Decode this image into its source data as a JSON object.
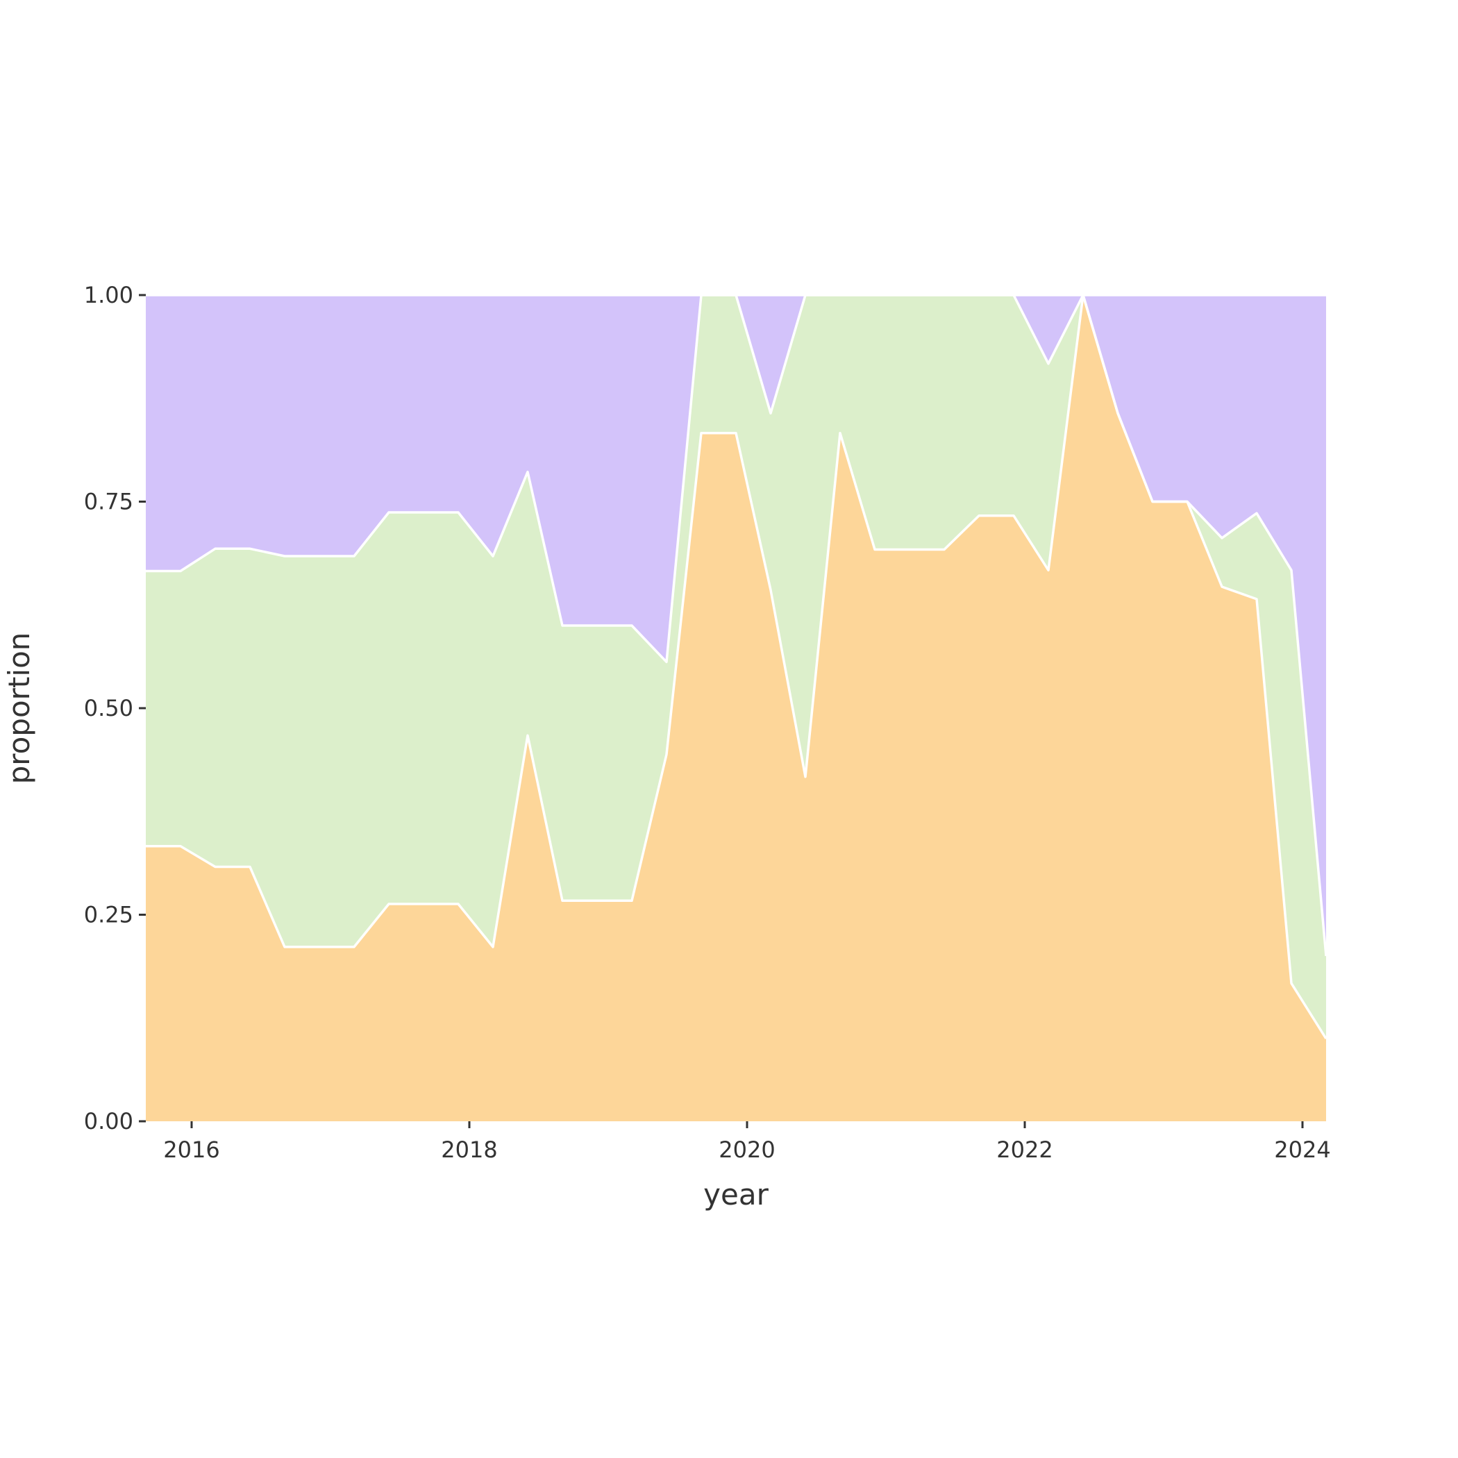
{
  "chart_data": {
    "type": "area",
    "stacked": true,
    "normalized": true,
    "title": "",
    "xlabel": "year",
    "ylabel": "proportion",
    "xlim": [
      2015.67,
      2024.17
    ],
    "ylim": [
      0,
      1
    ],
    "x_ticks": [
      "2016",
      "2018",
      "2020",
      "2022",
      "2024"
    ],
    "y_ticks": [
      "0.00",
      "0.25",
      "0.50",
      "0.75",
      "1.00"
    ],
    "grid": false,
    "legend": "none",
    "x": [
      2015.67,
      2015.92,
      2016.17,
      2016.42,
      2016.67,
      2016.92,
      2017.17,
      2017.42,
      2017.67,
      2017.92,
      2018.17,
      2018.42,
      2018.67,
      2018.92,
      2019.17,
      2019.42,
      2019.67,
      2019.92,
      2020.17,
      2020.42,
      2020.67,
      2020.92,
      2021.17,
      2021.42,
      2021.67,
      2021.92,
      2022.17,
      2022.42,
      2022.67,
      2022.92,
      2023.17,
      2023.42,
      2023.67,
      2023.92,
      2024.17
    ],
    "series": [
      {
        "color": "#fdd699",
        "values": [
          0.333,
          0.333,
          0.308,
          0.308,
          0.211,
          0.211,
          0.211,
          0.263,
          0.263,
          0.263,
          0.211,
          0.467,
          0.267,
          0.267,
          0.267,
          0.444,
          0.833,
          0.833,
          0.643,
          0.417,
          0.833,
          0.692,
          0.692,
          0.692,
          0.733,
          0.733,
          0.667,
          1.0,
          0.857,
          0.75,
          0.75,
          0.647,
          0.632,
          0.167,
          0.1
        ]
      },
      {
        "color": "#dcefcb",
        "values": [
          0.333,
          0.333,
          0.385,
          0.385,
          0.473,
          0.473,
          0.473,
          0.474,
          0.474,
          0.474,
          0.473,
          0.319,
          0.333,
          0.333,
          0.333,
          0.112,
          0.167,
          0.167,
          0.214,
          0.583,
          0.167,
          0.308,
          0.308,
          0.308,
          0.267,
          0.267,
          0.25,
          0.0,
          0.0,
          0.0,
          0.0,
          0.059,
          0.104,
          0.5,
          0.1
        ]
      },
      {
        "color": "#d3c3fa",
        "values": [
          0.334,
          0.334,
          0.307,
          0.307,
          0.316,
          0.316,
          0.316,
          0.263,
          0.263,
          0.263,
          0.316,
          0.214,
          0.4,
          0.4,
          0.4,
          0.444,
          0.0,
          0.0,
          0.143,
          0.0,
          0.0,
          0.0,
          0.0,
          0.0,
          0.0,
          0.0,
          0.083,
          0.0,
          0.143,
          0.25,
          0.25,
          0.294,
          0.264,
          0.333,
          0.8
        ]
      }
    ]
  }
}
